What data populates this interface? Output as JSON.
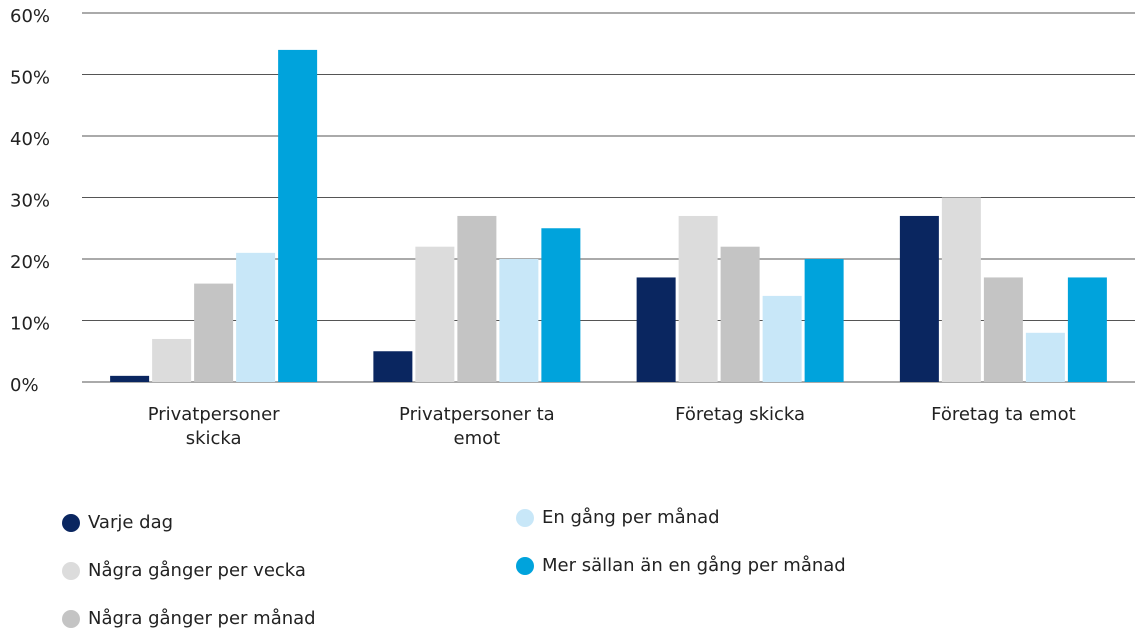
{
  "chart_data": {
    "type": "bar",
    "categories": [
      "Privatpersoner skicka",
      "Privatpersoner ta emot",
      "Företag skicka",
      "Företag ta emot"
    ],
    "series": [
      {
        "name": "Varje dag",
        "color": "#0a2660",
        "values": [
          1,
          5,
          17,
          27
        ]
      },
      {
        "name": "Några gånger per vecka",
        "color": "#dcdcdc",
        "values": [
          7,
          22,
          27,
          30
        ]
      },
      {
        "name": "Några gånger per månad",
        "color": "#c4c4c4",
        "values": [
          16,
          27,
          22,
          17
        ]
      },
      {
        "name": "En gång per månad",
        "color": "#c8e7f8",
        "values": [
          21,
          20,
          14,
          8
        ]
      },
      {
        "name": "Mer sällan än en gång per månad",
        "color": "#00a3dc",
        "values": [
          54,
          25,
          20,
          17
        ]
      }
    ],
    "ylim": [
      0,
      60
    ],
    "yticks": [
      {
        "value": 0,
        "label": "0%"
      },
      {
        "value": 10,
        "label": "10%"
      },
      {
        "value": 20,
        "label": "20%"
      },
      {
        "value": 30,
        "label": "30%"
      },
      {
        "value": 40,
        "label": "40%"
      },
      {
        "value": 50,
        "label": "50%"
      },
      {
        "value": 60,
        "label": "60%"
      }
    ],
    "grid": true
  }
}
